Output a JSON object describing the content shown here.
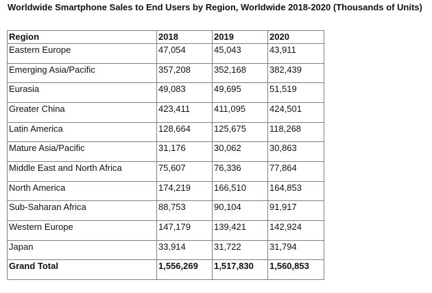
{
  "title": "Worldwide Smartphone Sales to End Users by Region, Worldwide 2018-2020 (Thousands of Units)",
  "chart_data": {
    "type": "table",
    "title": "Worldwide Smartphone Sales to End Users by Region, Worldwide 2018-2020 (Thousands of Units)",
    "columns": [
      "Region",
      "2018",
      "2019",
      "2020"
    ],
    "rows": [
      [
        "Eastern Europe",
        "47,054",
        "45,043",
        "43,911"
      ],
      [
        "Emerging Asia/Pacific",
        "357,208",
        "352,168",
        "382,439"
      ],
      [
        "Eurasia",
        "49,083",
        "49,695",
        "51,519"
      ],
      [
        "Greater China",
        "423,411",
        "411,095",
        "424,501"
      ],
      [
        "Latin America",
        "128,664",
        "125,675",
        "118,268"
      ],
      [
        "Mature Asia/Pacific",
        "31,176",
        "30,062",
        "30,863"
      ],
      [
        "Middle East and North Africa",
        "75,607",
        "76,336",
        "77,864"
      ],
      [
        "North America",
        "174,219",
        "166,510",
        "164,853"
      ],
      [
        "Sub-Saharan Africa",
        "88,753",
        "90,104",
        "91,917"
      ],
      [
        "Western Europe",
        "147,179",
        "139,421",
        "142,924"
      ],
      [
        "Japan",
        "33,914",
        "31,722",
        "31,794"
      ]
    ],
    "total": [
      "Grand Total",
      "1,556,269",
      "1,517,830",
      "1,560,853"
    ]
  }
}
